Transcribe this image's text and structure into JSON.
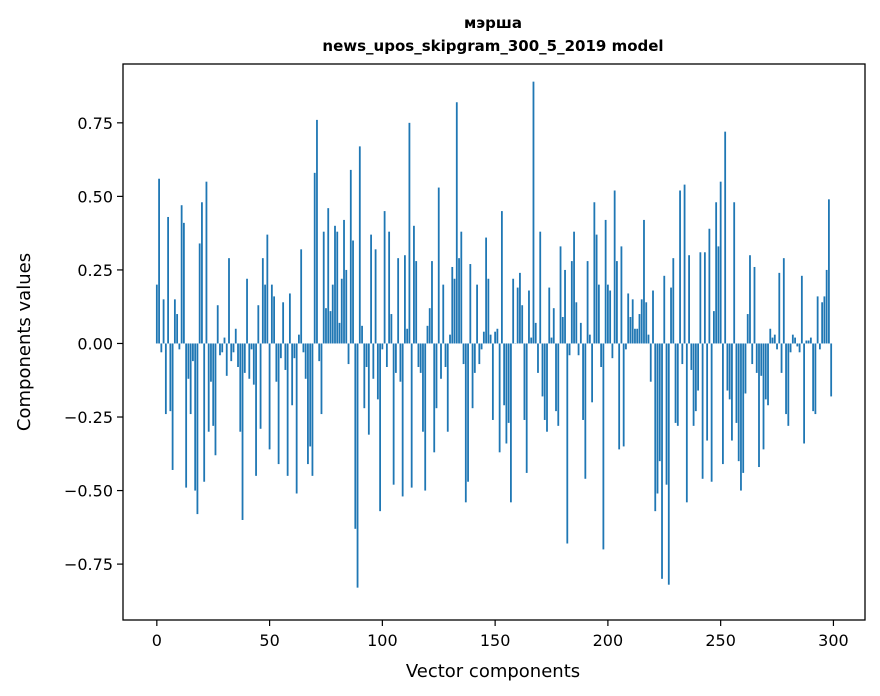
{
  "chart_data": {
    "type": "bar",
    "title_lines": [
      "мэрша",
      "news_upos_skipgram_300_5_2019 model"
    ],
    "xlabel": "Vector components",
    "ylabel": "Components values",
    "xlim": [
      -15,
      314
    ],
    "ylim": [
      -0.94,
      0.95
    ],
    "xticks": [
      0,
      50,
      100,
      150,
      200,
      250,
      300
    ],
    "xtick_labels": [
      "0",
      "50",
      "100",
      "150",
      "200",
      "250",
      "300"
    ],
    "yticks": [
      -0.75,
      -0.5,
      -0.25,
      0.0,
      0.25,
      0.5,
      0.75
    ],
    "ytick_labels": [
      "−0.75",
      "−0.50",
      "−0.25",
      "0.00",
      "0.25",
      "0.50",
      "0.75"
    ],
    "grid": false,
    "bar_color": "#1f77b4",
    "x": [
      0,
      1,
      2,
      3,
      4,
      5,
      6,
      7,
      8,
      9,
      10,
      11,
      12,
      13,
      14,
      15,
      16,
      17,
      18,
      19,
      20,
      21,
      22,
      23,
      24,
      25,
      26,
      27,
      28,
      29,
      30,
      31,
      32,
      33,
      34,
      35,
      36,
      37,
      38,
      39,
      40,
      41,
      42,
      43,
      44,
      45,
      46,
      47,
      48,
      49,
      50,
      51,
      52,
      53,
      54,
      55,
      56,
      57,
      58,
      59,
      60,
      61,
      62,
      63,
      64,
      65,
      66,
      67,
      68,
      69,
      70,
      71,
      72,
      73,
      74,
      75,
      76,
      77,
      78,
      79,
      80,
      81,
      82,
      83,
      84,
      85,
      86,
      87,
      88,
      89,
      90,
      91,
      92,
      93,
      94,
      95,
      96,
      97,
      98,
      99,
      100,
      101,
      102,
      103,
      104,
      105,
      106,
      107,
      108,
      109,
      110,
      111,
      112,
      113,
      114,
      115,
      116,
      117,
      118,
      119,
      120,
      121,
      122,
      123,
      124,
      125,
      126,
      127,
      128,
      129,
      130,
      131,
      132,
      133,
      134,
      135,
      136,
      137,
      138,
      139,
      140,
      141,
      142,
      143,
      144,
      145,
      146,
      147,
      148,
      149,
      150,
      151,
      152,
      153,
      154,
      155,
      156,
      157,
      158,
      159,
      160,
      161,
      162,
      163,
      164,
      165,
      166,
      167,
      168,
      169,
      170,
      171,
      172,
      173,
      174,
      175,
      176,
      177,
      178,
      179,
      180,
      181,
      182,
      183,
      184,
      185,
      186,
      187,
      188,
      189,
      190,
      191,
      192,
      193,
      194,
      195,
      196,
      197,
      198,
      199,
      200,
      201,
      202,
      203,
      204,
      205,
      206,
      207,
      208,
      209,
      210,
      211,
      212,
      213,
      214,
      215,
      216,
      217,
      218,
      219,
      220,
      221,
      222,
      223,
      224,
      225,
      226,
      227,
      228,
      229,
      230,
      231,
      232,
      233,
      234,
      235,
      236,
      237,
      238,
      239,
      240,
      241,
      242,
      243,
      244,
      245,
      246,
      247,
      248,
      249,
      250,
      251,
      252,
      253,
      254,
      255,
      256,
      257,
      258,
      259,
      260,
      261,
      262,
      263,
      264,
      265,
      266,
      267,
      268,
      269,
      270,
      271,
      272,
      273,
      274,
      275,
      276,
      277,
      278,
      279,
      280,
      281,
      282,
      283,
      284,
      285,
      286,
      287,
      288,
      289,
      290,
      291,
      292,
      293,
      294,
      295,
      296,
      297,
      298,
      299
    ],
    "values": [
      0.2,
      0.56,
      -0.03,
      0.15,
      -0.24,
      0.43,
      -0.23,
      -0.43,
      0.15,
      0.1,
      -0.02,
      0.47,
      0.41,
      -0.49,
      -0.12,
      -0.24,
      -0.06,
      -0.5,
      -0.58,
      0.34,
      0.48,
      -0.47,
      0.55,
      -0.3,
      -0.13,
      -0.28,
      -0.38,
      0.13,
      -0.04,
      -0.03,
      0.02,
      -0.11,
      0.29,
      -0.06,
      -0.03,
      0.05,
      -0.08,
      -0.3,
      -0.6,
      -0.1,
      0.22,
      -0.12,
      -0.02,
      -0.14,
      -0.45,
      0.13,
      -0.29,
      0.29,
      0.2,
      0.37,
      -0.36,
      0.2,
      0.16,
      -0.13,
      -0.41,
      -0.05,
      0.14,
      -0.09,
      -0.45,
      0.17,
      -0.21,
      -0.05,
      -0.51,
      0.03,
      0.32,
      -0.03,
      -0.12,
      -0.41,
      -0.35,
      -0.45,
      0.58,
      0.76,
      -0.06,
      -0.24,
      0.38,
      0.12,
      0.46,
      0.11,
      0.2,
      0.4,
      0.38,
      0.07,
      0.22,
      0.42,
      0.25,
      -0.07,
      0.59,
      0.35,
      -0.63,
      -0.83,
      0.67,
      0.06,
      -0.22,
      -0.08,
      -0.31,
      0.37,
      -0.12,
      0.32,
      -0.19,
      -0.57,
      -0.02,
      0.45,
      -0.08,
      0.38,
      0.1,
      -0.48,
      -0.1,
      0.29,
      -0.13,
      -0.52,
      0.3,
      0.05,
      0.75,
      -0.49,
      0.4,
      0.28,
      -0.08,
      -0.1,
      -0.3,
      -0.5,
      0.06,
      0.12,
      0.28,
      -0.37,
      -0.22,
      0.53,
      -0.12,
      0.2,
      -0.08,
      -0.3,
      0.03,
      0.26,
      0.22,
      0.82,
      0.29,
      0.38,
      -0.07,
      -0.54,
      -0.47,
      0.27,
      -0.22,
      -0.1,
      0.2,
      -0.07,
      -0.02,
      0.04,
      0.36,
      0.22,
      0.03,
      -0.26,
      0.04,
      0.05,
      -0.37,
      0.45,
      -0.21,
      -0.34,
      -0.27,
      -0.54,
      0.22,
      0.0,
      0.19,
      0.24,
      0.13,
      -0.26,
      -0.44,
      0.18,
      0.02,
      0.89,
      0.07,
      -0.1,
      0.38,
      -0.18,
      -0.26,
      -0.3,
      0.19,
      0.02,
      0.12,
      -0.23,
      -0.28,
      0.33,
      0.09,
      0.25,
      -0.68,
      -0.04,
      0.28,
      0.38,
      0.14,
      -0.04,
      0.07,
      -0.26,
      -0.46,
      0.28,
      0.03,
      -0.2,
      0.48,
      0.37,
      0.2,
      -0.08,
      -0.7,
      0.42,
      0.2,
      0.18,
      -0.05,
      0.52,
      0.28,
      -0.36,
      0.33,
      -0.35,
      -0.02,
      0.17,
      0.09,
      0.15,
      0.05,
      0.05,
      0.1,
      0.15,
      0.42,
      0.14,
      0.03,
      -0.13,
      0.18,
      -0.57,
      -0.51,
      -0.4,
      -0.8,
      0.23,
      -0.48,
      -0.82,
      0.19,
      0.29,
      -0.27,
      -0.28,
      0.52,
      -0.07,
      0.54,
      -0.54,
      0.3,
      -0.09,
      -0.28,
      -0.23,
      -0.16,
      0.31,
      -0.46,
      0.31,
      -0.33,
      0.39,
      -0.47,
      0.11,
      0.48,
      0.33,
      0.55,
      -0.41,
      0.72,
      -0.16,
      -0.19,
      -0.33,
      0.48,
      -0.27,
      -0.4,
      -0.5,
      -0.44,
      -0.17,
      0.1,
      0.3,
      -0.07,
      0.26,
      -0.1,
      -0.42,
      -0.11,
      -0.36,
      -0.19,
      -0.21,
      0.05,
      0.02,
      0.03,
      -0.02,
      0.24,
      -0.1,
      0.29,
      -0.24,
      -0.28,
      -0.03,
      0.03,
      0.02,
      -0.01,
      -0.03,
      0.23,
      -0.34,
      0.01,
      0.01,
      0.02,
      -0.23,
      -0.24,
      0.16,
      -0.02,
      0.14,
      0.16,
      0.25,
      0.49,
      -0.18
    ]
  }
}
